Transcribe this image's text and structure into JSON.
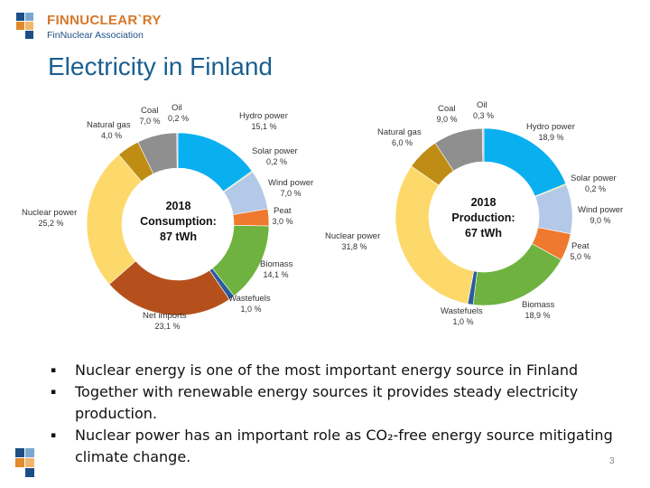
{
  "header": {
    "logo_name": "FINNUCLEAR`RY",
    "logo_sub": "FinNuclear Association",
    "title": "Electricity in Finland"
  },
  "chart_data": [
    {
      "type": "pie",
      "center_lines": [
        "2018",
        "Consumption:",
        "87 tWh"
      ],
      "slices": [
        {
          "label": "Hydro power",
          "value_text": "15,1 %",
          "value": 15.1,
          "color": "#0aaff0"
        },
        {
          "label": "Solar power",
          "value_text": "0,2 %",
          "value": 0.2,
          "color": "#d8d030"
        },
        {
          "label": "Wind power",
          "value_text": "7,0 %",
          "value": 7.0,
          "color": "#b4c8e8"
        },
        {
          "label": "Peat",
          "value_text": "3,0 %",
          "value": 3.0,
          "color": "#ef7a2f"
        },
        {
          "label": "Biomass",
          "value_text": "14,1 %",
          "value": 14.1,
          "color": "#6fb23f"
        },
        {
          "label": "Wastefuels",
          "value_text": "1,0 %",
          "value": 1.0,
          "color": "#2a5c9c"
        },
        {
          "label": "Net imports",
          "value_text": "23,1 %",
          "value": 23.1,
          "color": "#b5501c"
        },
        {
          "label": "Nuclear power",
          "value_text": "25,2 %",
          "value": 25.2,
          "color": "#fdd96b"
        },
        {
          "label": "Natural gas",
          "value_text": "4,0 %",
          "value": 4.0,
          "color": "#bf8c14"
        },
        {
          "label": "Coal",
          "value_text": "7,0 %",
          "value": 7.0,
          "color": "#8f8f8f"
        },
        {
          "label": "Oil",
          "value_text": "0,2 %",
          "value": 0.2,
          "color": "#c9c9c9"
        }
      ]
    },
    {
      "type": "pie",
      "center_lines": [
        "2018",
        "Production:",
        "67 tWh"
      ],
      "slices": [
        {
          "label": "Hydro power",
          "value_text": "18,9 %",
          "value": 18.9,
          "color": "#0aaff0"
        },
        {
          "label": "Solar power",
          "value_text": "0,2 %",
          "value": 0.2,
          "color": "#d8d030"
        },
        {
          "label": "Wind power",
          "value_text": "9,0 %",
          "value": 9.0,
          "color": "#b4c8e8"
        },
        {
          "label": "Peat",
          "value_text": "5,0 %",
          "value": 5.0,
          "color": "#ef7a2f"
        },
        {
          "label": "Biomass",
          "value_text": "18,9 %",
          "value": 18.9,
          "color": "#6fb23f"
        },
        {
          "label": "Wastefuels",
          "value_text": "1,0 %",
          "value": 1.0,
          "color": "#2a5c9c"
        },
        {
          "label": "Nuclear power",
          "value_text": "31,8 %",
          "value": 31.8,
          "color": "#fdd96b"
        },
        {
          "label": "Natural gas",
          "value_text": "6,0 %",
          "value": 6.0,
          "color": "#bf8c14"
        },
        {
          "label": "Coal",
          "value_text": "9,0 %",
          "value": 9.0,
          "color": "#8f8f8f"
        },
        {
          "label": "Oil",
          "value_text": "0,3 %",
          "value": 0.3,
          "color": "#c9c9c9"
        }
      ]
    }
  ],
  "bullets": [
    "Nuclear energy is one of the most important energy source in Finland",
    "Together with renewable energy sources it provides steady electricity production.",
    "Nuclear power has an important role as CO₂-free energy source mitigating climate change."
  ],
  "bullet_symbol": "▪",
  "page_number": "3"
}
